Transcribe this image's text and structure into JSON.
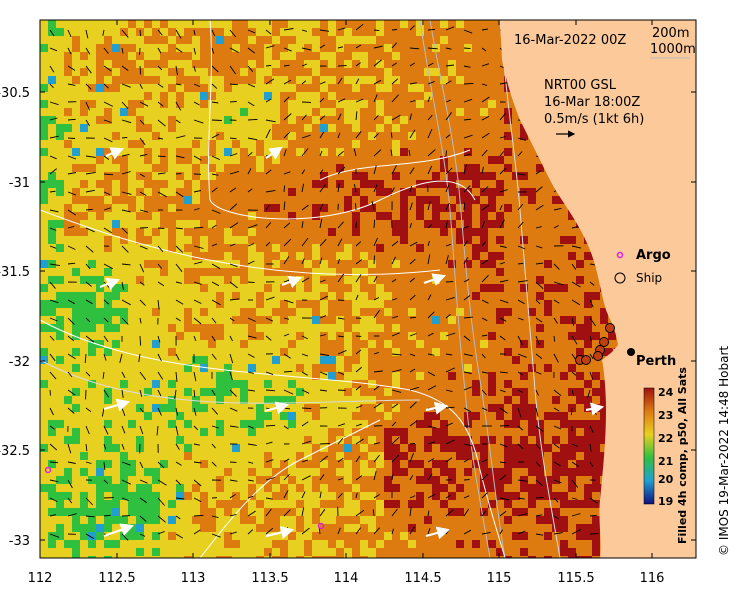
{
  "map": {
    "date_label": "16-Mar-2022 00Z",
    "depth_labels": [
      "200m",
      "1000m"
    ],
    "current_label_line1": "NRT00 GSL",
    "current_label_line2": "16-Mar 18:00Z",
    "current_label_line3": "0.5m/s (1kt 6h)",
    "argo_label": "Argo",
    "ship_label": "Ship",
    "city_label": "Perth",
    "colorbar_title": "Filled 4h comp, p50, All Sats",
    "colorbar_ticks": [
      "24",
      "23",
      "22",
      "21",
      "20",
      "19"
    ],
    "credit": "© IMOS 19-Mar-2022 14:48 Hobart",
    "x_ticks": [
      "112",
      "112.5",
      "113",
      "113.5",
      "114",
      "114.5",
      "115",
      "115.5",
      "116"
    ],
    "y_ticks": [
      "-30.5",
      "-31",
      "-31.5",
      "-32",
      "-32.5",
      "-33"
    ],
    "colors": {
      "land": "#fbc99a",
      "sst_24": "#a01010",
      "sst_23": "#dd7a10",
      "sst_22": "#e8d020",
      "sst_21": "#30c040",
      "sst_20": "#20a0d0",
      "sst_19": "#101080"
    }
  }
}
